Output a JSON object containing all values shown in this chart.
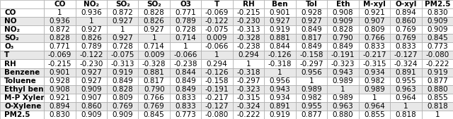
{
  "col_headers": [
    "CO",
    "NO",
    "NO₂",
    "SO₂",
    "O3",
    "T",
    "RH",
    "Ben",
    "Tol",
    "Eth",
    "M-xyl",
    "O-xyl",
    "PM2.5"
  ],
  "row_headers": [
    "CO",
    "NO",
    "NO₂",
    "SO₂",
    "O₃",
    "T",
    "RH",
    "Benzene",
    "Toluene",
    "Ethyl benzene",
    "M-P Xylene",
    "O-Xylene",
    "PM2.5"
  ],
  "data": [
    [
      1,
      0.936,
      0.872,
      0.828,
      0.771,
      -0.069,
      -0.215,
      0.901,
      0.928,
      0.908,
      0.921,
      0.894,
      0.83
    ],
    [
      0.936,
      1,
      0.927,
      0.826,
      0.789,
      -0.122,
      -0.23,
      0.927,
      0.927,
      0.909,
      0.907,
      0.86,
      0.909
    ],
    [
      0.872,
      0.927,
      1,
      0.927,
      0.728,
      -0.075,
      -0.313,
      0.919,
      0.849,
      0.828,
      0.809,
      0.769,
      0.909
    ],
    [
      0.828,
      0.826,
      0.927,
      1,
      0.714,
      0.009,
      -0.328,
      0.881,
      0.817,
      0.79,
      0.766,
      0.769,
      0.845
    ],
    [
      0.771,
      0.789,
      0.728,
      0.714,
      1,
      -0.066,
      -0.238,
      0.844,
      0.849,
      0.849,
      0.833,
      0.833,
      0.773
    ],
    [
      -0.069,
      -0.122,
      -0.075,
      0.009,
      -0.066,
      1,
      0.294,
      -0.126,
      -0.158,
      -0.191,
      -0.217,
      -0.127,
      -0.08
    ],
    [
      -0.215,
      -0.23,
      -0.313,
      -0.328,
      -0.238,
      0.294,
      1,
      -0.318,
      -0.297,
      -0.323,
      -0.315,
      -0.324,
      -0.222
    ],
    [
      0.901,
      0.927,
      0.919,
      0.881,
      0.844,
      -0.126,
      -0.318,
      1,
      0.956,
      0.943,
      0.934,
      0.891,
      0.919
    ],
    [
      0.928,
      0.927,
      0.849,
      0.817,
      0.849,
      -0.158,
      -0.297,
      0.956,
      1,
      0.989,
      0.982,
      0.955,
      0.877
    ],
    [
      0.908,
      0.909,
      0.828,
      0.79,
      0.849,
      -0.191,
      -0.323,
      0.943,
      0.989,
      1,
      0.989,
      0.963,
      0.88
    ],
    [
      0.921,
      0.907,
      0.809,
      0.766,
      0.833,
      -0.217,
      -0.315,
      0.934,
      0.982,
      0.989,
      1,
      0.964,
      0.855
    ],
    [
      0.894,
      0.86,
      0.769,
      0.769,
      0.833,
      -0.127,
      -0.324,
      0.891,
      0.955,
      0.963,
      0.964,
      1,
      0.818
    ],
    [
      0.83,
      0.909,
      0.909,
      0.845,
      0.773,
      -0.08,
      -0.222,
      0.919,
      0.877,
      0.88,
      0.855,
      0.818,
      1
    ]
  ],
  "bg_color": "#ffffff",
  "header_bg": "#ffffff",
  "row_alt_colors": [
    "#ffffff",
    "#e8e8e8"
  ],
  "font_size": 7.5
}
